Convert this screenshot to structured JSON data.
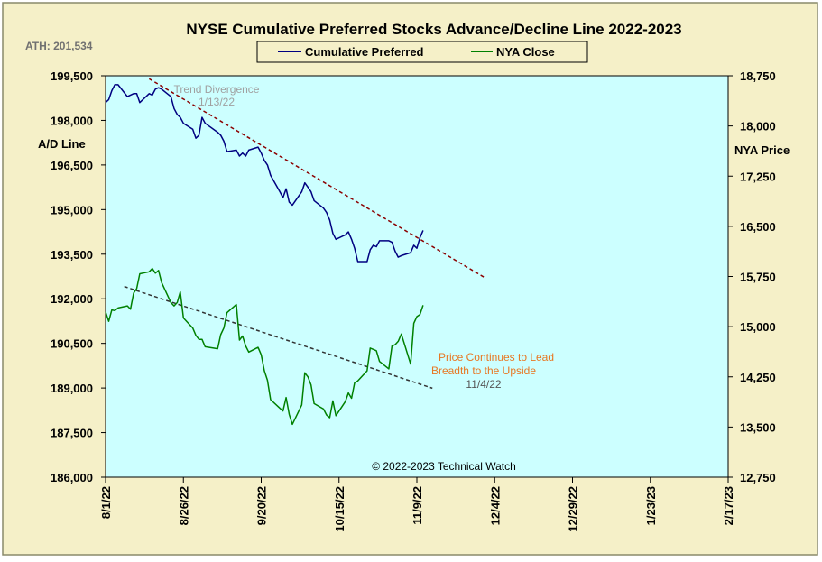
{
  "chart_data": {
    "type": "line",
    "title": "NYSE Cumulative  Preferred Stocks Advance/Decline  Line 2022-2023",
    "ath_label": "ATH: 201,534",
    "left_axis_label": "A/D Line",
    "right_axis_label": "NYA Price",
    "credit": "© 2022-2023  Technical  Watch",
    "grid": false,
    "legend_position": "top-center",
    "colors": {
      "background": "#f5f0c8",
      "plot_area": "#ccffff",
      "ad_line": "#000080",
      "nya_line": "#008000",
      "ad_trend": "#8b0000",
      "nya_trend": "#333333",
      "trend_note": "#a0a0a0",
      "price_note": "#e87722"
    },
    "x_axis": {
      "start": "2022-08-01",
      "end": "2023-02-17",
      "tick_labels": [
        "8/1/22",
        "8/26/22",
        "9/20/22",
        "10/15/22",
        "11/9/22",
        "12/4/22",
        "12/29/22",
        "1/23/23",
        "2/17/23"
      ]
    },
    "y_left": {
      "min": 186000,
      "max": 199500,
      "tick_labels": [
        "199,500",
        "198,000",
        "196,500",
        "195,000",
        "193,500",
        "192,000",
        "190,500",
        "189,000",
        "187,500",
        "186,000"
      ]
    },
    "y_right": {
      "min": 12750,
      "max": 18750,
      "tick_labels": [
        "18,750",
        "18,000",
        "17,250",
        "16,500",
        "15,750",
        "15,000",
        "14,250",
        "13,500",
        "12,750"
      ]
    },
    "series": [
      {
        "name": "Cumulative Preferred",
        "axis": "left",
        "points": [
          [
            "2022-08-01",
            198600
          ],
          [
            "2022-08-02",
            198700
          ],
          [
            "2022-08-03",
            199000
          ],
          [
            "2022-08-04",
            199200
          ],
          [
            "2022-08-05",
            199200
          ],
          [
            "2022-08-08",
            198800
          ],
          [
            "2022-08-09",
            198850
          ],
          [
            "2022-08-10",
            198900
          ],
          [
            "2022-08-11",
            198900
          ],
          [
            "2022-08-12",
            198600
          ],
          [
            "2022-08-15",
            198900
          ],
          [
            "2022-08-16",
            198850
          ],
          [
            "2022-08-17",
            199050
          ],
          [
            "2022-08-18",
            199100
          ],
          [
            "2022-08-19",
            199050
          ],
          [
            "2022-08-22",
            198800
          ],
          [
            "2022-08-23",
            198400
          ],
          [
            "2022-08-24",
            198200
          ],
          [
            "2022-08-25",
            198100
          ],
          [
            "2022-08-26",
            197900
          ],
          [
            "2022-08-29",
            197700
          ],
          [
            "2022-08-30",
            197400
          ],
          [
            "2022-08-31",
            197500
          ],
          [
            "2022-09-01",
            198100
          ],
          [
            "2022-09-02",
            197900
          ],
          [
            "2022-09-06",
            197600
          ],
          [
            "2022-09-07",
            197500
          ],
          [
            "2022-09-08",
            197300
          ],
          [
            "2022-09-09",
            196950
          ],
          [
            "2022-09-12",
            197000
          ],
          [
            "2022-09-13",
            196800
          ],
          [
            "2022-09-14",
            196900
          ],
          [
            "2022-09-15",
            196800
          ],
          [
            "2022-09-16",
            197000
          ],
          [
            "2022-09-19",
            197100
          ],
          [
            "2022-09-20",
            196900
          ],
          [
            "2022-09-21",
            196650
          ],
          [
            "2022-09-22",
            196500
          ],
          [
            "2022-09-23",
            196150
          ],
          [
            "2022-09-26",
            195600
          ],
          [
            "2022-09-27",
            195400
          ],
          [
            "2022-09-28",
            195700
          ],
          [
            "2022-09-29",
            195250
          ],
          [
            "2022-09-30",
            195150
          ],
          [
            "2022-10-03",
            195600
          ],
          [
            "2022-10-04",
            195900
          ],
          [
            "2022-10-05",
            195750
          ],
          [
            "2022-10-06",
            195600
          ],
          [
            "2022-10-07",
            195300
          ],
          [
            "2022-10-10",
            195050
          ],
          [
            "2022-10-11",
            194900
          ],
          [
            "2022-10-12",
            194650
          ],
          [
            "2022-10-13",
            194200
          ],
          [
            "2022-10-14",
            194000
          ],
          [
            "2022-10-17",
            194150
          ],
          [
            "2022-10-18",
            194250
          ],
          [
            "2022-10-19",
            194000
          ],
          [
            "2022-10-20",
            193700
          ],
          [
            "2022-10-21",
            193250
          ],
          [
            "2022-10-24",
            193250
          ],
          [
            "2022-10-25",
            193650
          ],
          [
            "2022-10-26",
            193800
          ],
          [
            "2022-10-27",
            193750
          ],
          [
            "2022-10-28",
            193950
          ],
          [
            "2022-10-31",
            193950
          ],
          [
            "2022-11-01",
            193900
          ],
          [
            "2022-11-02",
            193600
          ],
          [
            "2022-11-03",
            193400
          ],
          [
            "2022-11-04",
            193450
          ],
          [
            "2022-11-07",
            193550
          ],
          [
            "2022-11-08",
            193800
          ],
          [
            "2022-11-09",
            193700
          ],
          [
            "2022-11-10",
            194050
          ],
          [
            "2022-11-11",
            194300
          ]
        ]
      },
      {
        "name": "NYA Close",
        "axis": "right",
        "points": [
          [
            "2022-08-01",
            15220
          ],
          [
            "2022-08-02",
            15080
          ],
          [
            "2022-08-03",
            15250
          ],
          [
            "2022-08-04",
            15240
          ],
          [
            "2022-08-05",
            15280
          ],
          [
            "2022-08-08",
            15310
          ],
          [
            "2022-08-09",
            15260
          ],
          [
            "2022-08-10",
            15500
          ],
          [
            "2022-08-11",
            15570
          ],
          [
            "2022-08-12",
            15790
          ],
          [
            "2022-08-15",
            15820
          ],
          [
            "2022-08-16",
            15870
          ],
          [
            "2022-08-17",
            15800
          ],
          [
            "2022-08-18",
            15840
          ],
          [
            "2022-08-19",
            15660
          ],
          [
            "2022-08-22",
            15360
          ],
          [
            "2022-08-23",
            15310
          ],
          [
            "2022-08-24",
            15360
          ],
          [
            "2022-08-25",
            15520
          ],
          [
            "2022-08-26",
            15130
          ],
          [
            "2022-08-29",
            14980
          ],
          [
            "2022-08-30",
            14870
          ],
          [
            "2022-08-31",
            14810
          ],
          [
            "2022-09-01",
            14810
          ],
          [
            "2022-09-02",
            14700
          ],
          [
            "2022-09-06",
            14670
          ],
          [
            "2022-09-07",
            14880
          ],
          [
            "2022-09-08",
            14980
          ],
          [
            "2022-09-09",
            15210
          ],
          [
            "2022-09-12",
            15330
          ],
          [
            "2022-09-13",
            14800
          ],
          [
            "2022-09-14",
            14860
          ],
          [
            "2022-09-15",
            14710
          ],
          [
            "2022-09-16",
            14620
          ],
          [
            "2022-09-19",
            14690
          ],
          [
            "2022-09-20",
            14580
          ],
          [
            "2022-09-21",
            14340
          ],
          [
            "2022-09-22",
            14200
          ],
          [
            "2022-09-23",
            13910
          ],
          [
            "2022-09-26",
            13780
          ],
          [
            "2022-09-27",
            13740
          ],
          [
            "2022-09-28",
            13940
          ],
          [
            "2022-09-29",
            13690
          ],
          [
            "2022-09-30",
            13540
          ],
          [
            "2022-10-03",
            13830
          ],
          [
            "2022-10-04",
            14310
          ],
          [
            "2022-10-05",
            14250
          ],
          [
            "2022-10-06",
            14130
          ],
          [
            "2022-10-07",
            13850
          ],
          [
            "2022-10-10",
            13770
          ],
          [
            "2022-10-11",
            13680
          ],
          [
            "2022-10-12",
            13640
          ],
          [
            "2022-10-13",
            13890
          ],
          [
            "2022-10-14",
            13670
          ],
          [
            "2022-10-17",
            13880
          ],
          [
            "2022-10-18",
            14010
          ],
          [
            "2022-10-19",
            13930
          ],
          [
            "2022-10-20",
            14160
          ],
          [
            "2022-10-21",
            14190
          ],
          [
            "2022-10-24",
            14340
          ],
          [
            "2022-10-25",
            14680
          ],
          [
            "2022-10-26",
            14660
          ],
          [
            "2022-10-27",
            14640
          ],
          [
            "2022-10-28",
            14480
          ],
          [
            "2022-10-31",
            14370
          ],
          [
            "2022-11-01",
            14710
          ],
          [
            "2022-11-02",
            14730
          ],
          [
            "2022-11-03",
            14780
          ],
          [
            "2022-11-04",
            14890
          ],
          [
            "2022-11-07",
            14440
          ],
          [
            "2022-11-08",
            15050
          ],
          [
            "2022-11-09",
            15150
          ],
          [
            "2022-11-10",
            15180
          ],
          [
            "2022-11-11",
            15320
          ]
        ]
      }
    ],
    "trendlines": [
      {
        "axis": "left",
        "from": [
          "2022-08-15",
          199400
        ],
        "to": [
          "2022-12-01",
          192700
        ]
      },
      {
        "axis": "right",
        "from": [
          "2022-08-07",
          15600
        ],
        "to": [
          "2022-11-14",
          14080
        ]
      }
    ],
    "annotations": [
      {
        "lines": [
          "Trend  Divergence",
          "1/13/22"
        ]
      },
      {
        "lines": [
          "Price Continues to Lead",
          "Breadth  to the Upside"
        ]
      },
      {
        "lines": [
          "11/4/22"
        ]
      }
    ]
  }
}
